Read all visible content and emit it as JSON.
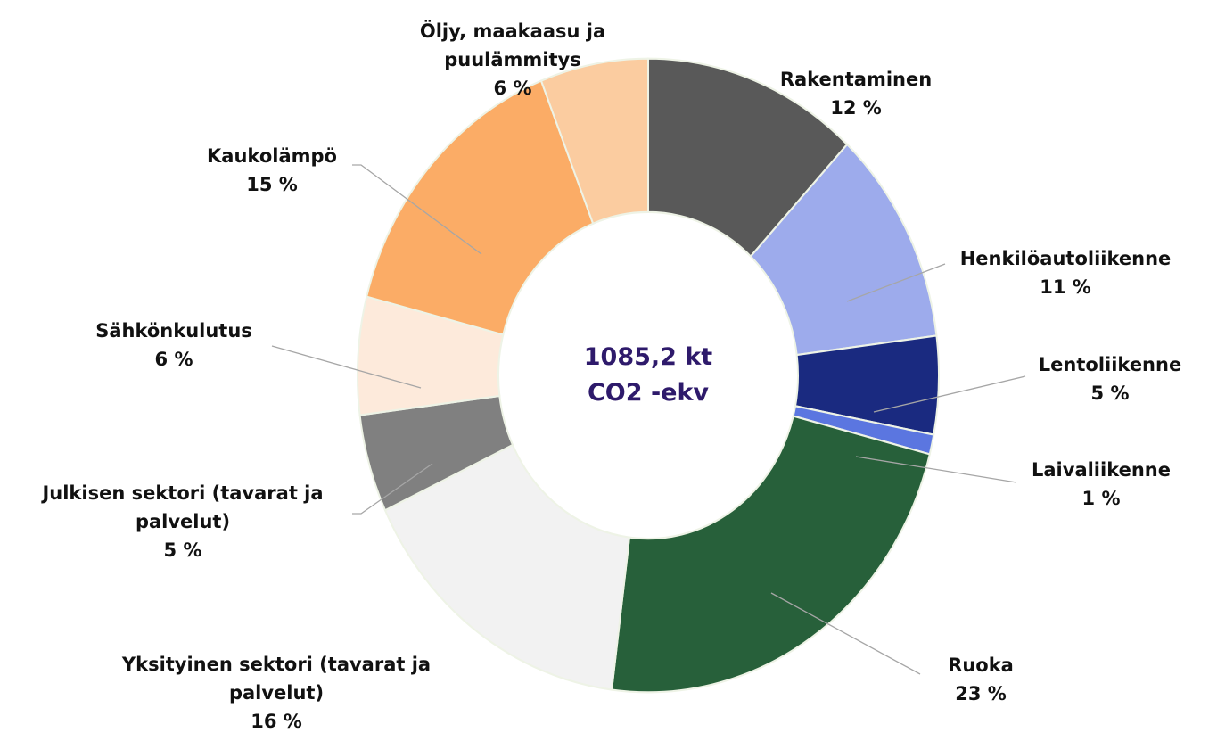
{
  "chart_data": {
    "type": "donut",
    "center_label": "1085,2 kt CO2 -ekv",
    "categories": [
      "Rakentaminen",
      "Henkilöautoliikenne",
      "Lentoliikenne",
      "Laivaliikenne",
      "Ruoka",
      "Yksityinen sektori (tavarat ja palvelut)",
      "Julkisen sektori (tavarat ja palvelut)",
      "Sähkönkulutus",
      "Kaukolämpö",
      "Öljy, maakaasu ja puulämmitys"
    ],
    "values": [
      12,
      11,
      5,
      1,
      23,
      16,
      5,
      6,
      15,
      6
    ],
    "value_labels": [
      "12 %",
      "11 %",
      "5 %",
      "1 %",
      "23 %",
      "16 %",
      "5 %",
      "6 %",
      "15 %",
      "6 %"
    ],
    "colors": [
      "#595959",
      "#9dabec",
      "#1a2a80",
      "#5b76e0",
      "#27603a",
      "#f2f2f2",
      "#808080",
      "#fdeadb",
      "#fbac66",
      "#fbcca0"
    ]
  }
}
